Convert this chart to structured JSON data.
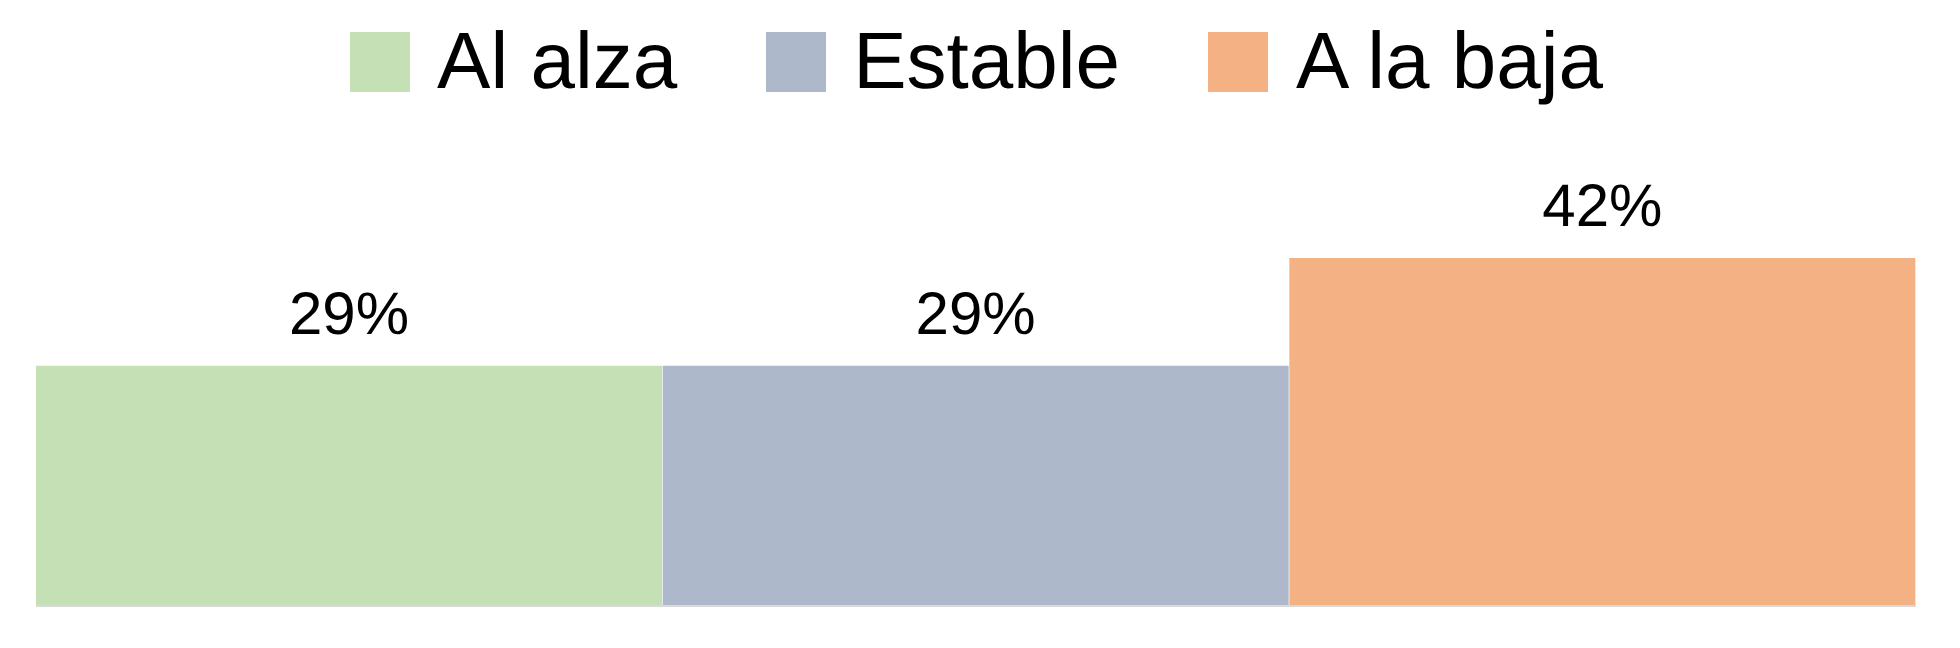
{
  "chart_data": {
    "type": "bar",
    "stacked": true,
    "categories": [
      null,
      null,
      null
    ],
    "legend": "top",
    "grid": false,
    "series": [
      {
        "name": "Al alza",
        "color": "#c5e0b4",
        "values": [
          29,
          null,
          null
        ],
        "value_labels": [
          "29%",
          null,
          null
        ]
      },
      {
        "name": "Estable",
        "color": "#adb9ca",
        "values": [
          null,
          29,
          null
        ],
        "value_labels": [
          null,
          "29%",
          null
        ]
      },
      {
        "name": "A la baja",
        "color": "#f4b183",
        "values": [
          null,
          null,
          42
        ],
        "value_labels": [
          null,
          null,
          "42%"
        ]
      }
    ]
  }
}
